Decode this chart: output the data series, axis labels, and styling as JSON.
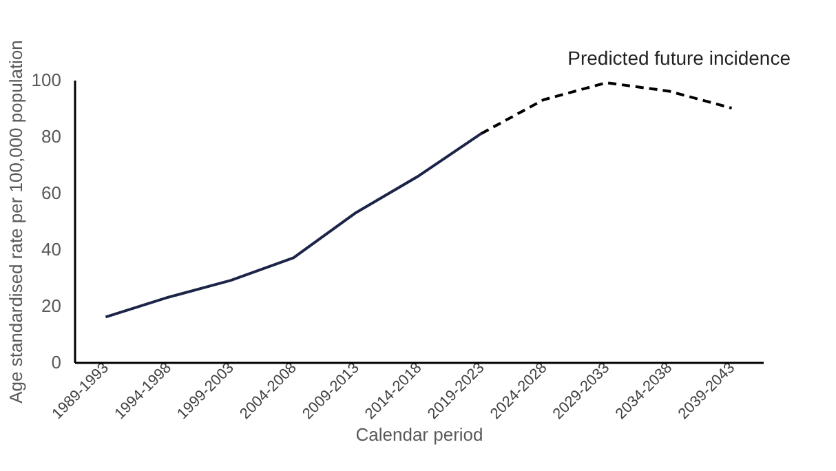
{
  "chart_data": {
    "type": "line",
    "xlabel": "Calendar period",
    "ylabel": "Age standardised rate per 100,000 population",
    "categories": [
      "1989-1993",
      "1994-1998",
      "1999-2003",
      "2004-2008",
      "2009-2013",
      "2014-2018",
      "2019-2023",
      "2024-2028",
      "2029-2033",
      "2034-2038",
      "2039-2043"
    ],
    "series": [
      {
        "color": "#1c2448",
        "line_style": "solid",
        "values": [
          16,
          23,
          29,
          37,
          53,
          66,
          81,
          null,
          null,
          null,
          null
        ]
      },
      {
        "color": "#000000",
        "line_style": "dashed",
        "values": [
          null,
          null,
          null,
          null,
          null,
          null,
          81,
          93,
          99,
          96,
          90
        ]
      }
    ],
    "ylim": [
      0,
      100
    ],
    "yticks": [
      0,
      20,
      40,
      60,
      80,
      100
    ],
    "grid": false,
    "legend": false,
    "marker": "none",
    "annotations": [
      "Predicted future incidence"
    ]
  }
}
